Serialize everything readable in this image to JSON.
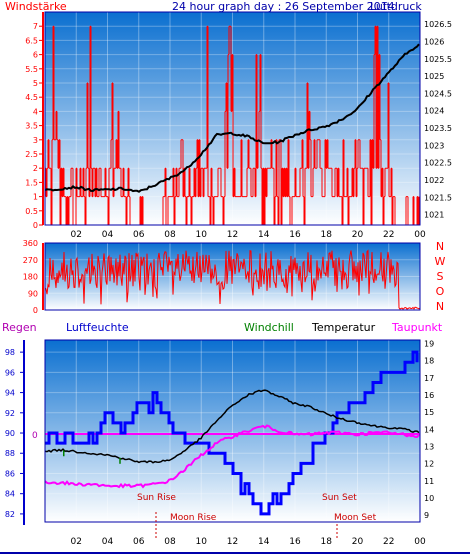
{
  "header": {
    "title": "24 hour graph day : 26 September 2014",
    "left_label": "Windstärke",
    "right_label": "Luftdruck"
  },
  "colors": {
    "wind": "#ff0000",
    "pressure": "#000000",
    "humidity": "#0000ff",
    "temperature": "#000000",
    "dewpoint": "#ff00ff",
    "windchill": "#008000",
    "bg_top": "#0a6fd0",
    "bg_bottom": "#ffffff",
    "frame": "#0000aa"
  },
  "legend": {
    "regen": "Regen",
    "luftfeuchte": "Luftfeuchte",
    "windchill": "Windchill",
    "temperatur": "Temperatur",
    "taupunkt": "Taupunkt"
  },
  "events": {
    "sun_rise": "Sun Rise",
    "sun_set": "Sun Set",
    "moon_rise": "Moon Rise",
    "moon_set": "Moon Set"
  },
  "chart_data": [
    {
      "type": "line",
      "title": "24 hour graph day : 26 September 2014",
      "x_ticks": [
        "02",
        "04",
        "06",
        "08",
        "10",
        "12",
        "14",
        "16",
        "18",
        "20",
        "22",
        "00"
      ],
      "left_axis": {
        "label": "Windstärke",
        "ticks": [
          "0",
          "0.5",
          "1",
          "1.5",
          "2",
          "2.5",
          "3",
          "3.5",
          "4",
          "4.5",
          "5",
          "5.5",
          "6",
          "6.5",
          "7"
        ],
        "ylim": [
          0,
          7.5
        ]
      },
      "right_axis": {
        "label": "Luftdruck",
        "ticks": [
          "1021",
          "1021.5",
          "1022",
          "1022.5",
          "1023",
          "1023.5",
          "1024",
          "1024.5",
          "1025",
          "1025.5",
          "1026",
          "1026.5"
        ],
        "ylim": [
          1020.7,
          1026.85
        ]
      },
      "series": [
        {
          "name": "Luftdruck",
          "axis": "right",
          "hours": [
            0,
            1,
            2,
            3,
            4,
            5,
            6,
            7,
            8,
            9,
            10,
            11,
            12,
            13,
            14,
            15,
            16,
            17,
            18,
            19,
            20,
            21,
            22,
            23,
            24
          ],
          "values": [
            1021.7,
            1021.75,
            1021.8,
            1021.7,
            1021.72,
            1021.75,
            1021.65,
            1021.85,
            1022.05,
            1022.3,
            1022.75,
            1023.3,
            1023.35,
            1023.25,
            1023.05,
            1023.1,
            1023.3,
            1023.45,
            1023.55,
            1023.75,
            1024.05,
            1024.6,
            1025.1,
            1025.6,
            1025.95
          ]
        },
        {
          "name": "Windstärke",
          "axis": "left",
          "note": "spiky bars, mostly 1–2 Bft with peaks up to 7"
        }
      ]
    },
    {
      "type": "line",
      "right_labels": [
        "N",
        "W",
        "S",
        "O",
        "N"
      ],
      "left_axis": {
        "ticks": [
          "0",
          "90",
          "180",
          "270",
          "360"
        ],
        "ylim": [
          0,
          360
        ]
      },
      "series": [
        {
          "name": "Windrichtung",
          "note": "dense noisy trace mostly between 90 and 330 degrees"
        }
      ]
    },
    {
      "type": "line",
      "x_ticks": [
        "02",
        "04",
        "06",
        "08",
        "10",
        "12",
        "14",
        "16",
        "18",
        "20",
        "22",
        "00"
      ],
      "left_axis": {
        "label": "Luftfeuchte",
        "ticks": [
          "82",
          "84",
          "86",
          "88",
          "90",
          "92",
          "94",
          "96",
          "98"
        ],
        "ylim": [
          81.2,
          99.2
        ]
      },
      "right_axis": {
        "label": "Temperatur",
        "ticks": [
          "9",
          "10",
          "11",
          "12",
          "13",
          "14",
          "15",
          "16",
          "17",
          "18",
          "19"
        ],
        "ylim": [
          8.6,
          19.2
        ]
      },
      "zero_marker": "0",
      "series": [
        {
          "name": "Luftfeuchte",
          "axis": "left",
          "step": true,
          "hours": [
            0,
            1,
            2,
            3,
            4,
            5,
            6,
            7,
            8,
            9,
            10,
            11,
            12,
            13,
            14,
            15,
            16,
            17,
            18,
            19,
            20,
            21,
            22,
            23,
            24
          ],
          "values": [
            89,
            90,
            89,
            89,
            92,
            90,
            93,
            93,
            91,
            89,
            89,
            88,
            86,
            84,
            82,
            84,
            86,
            88,
            90,
            92,
            93,
            95,
            96,
            97,
            98
          ]
        },
        {
          "name": "Temperatur",
          "axis": "right",
          "hours": [
            0,
            1,
            2,
            3,
            4,
            5,
            6,
            7,
            8,
            9,
            10,
            11,
            12,
            13,
            14,
            15,
            16,
            17,
            18,
            19,
            20,
            21,
            22,
            23,
            24
          ],
          "values": [
            12.7,
            12.8,
            12.7,
            12.6,
            12.5,
            12.3,
            12.1,
            12.1,
            12.2,
            12.8,
            13.5,
            14.5,
            15.4,
            16.0,
            16.3,
            15.9,
            15.5,
            15.3,
            14.9,
            14.6,
            14.4,
            14.2,
            14.1,
            14.0,
            13.8
          ]
        },
        {
          "name": "Taupunkt",
          "axis": "right",
          "hours": [
            0,
            1,
            2,
            3,
            4,
            5,
            6,
            7,
            8,
            9,
            10,
            11,
            12,
            13,
            14,
            15,
            16,
            17,
            18,
            19,
            20,
            21,
            22,
            23,
            24
          ],
          "values": [
            10.9,
            10.9,
            10.8,
            10.8,
            10.7,
            10.7,
            10.7,
            10.8,
            11.0,
            11.7,
            12.5,
            13.2,
            13.6,
            13.9,
            14.2,
            13.9,
            13.7,
            13.7,
            13.8,
            13.8,
            13.7,
            13.8,
            13.8,
            13.7,
            13.6
          ]
        },
        {
          "name": "Windchill",
          "axis": "right",
          "hours": [
            0,
            1,
            2,
            3,
            4,
            5,
            6,
            7,
            8,
            9,
            10,
            11,
            12,
            13,
            14,
            15,
            16,
            17,
            18,
            19,
            20,
            21,
            22,
            23,
            24
          ],
          "values": [
            12.7,
            12.8,
            12.7,
            12.6,
            12.5,
            12.3,
            12.1,
            12.1,
            12.2,
            12.8,
            13.5,
            14.5,
            15.4,
            16.0,
            16.3,
            15.9,
            15.5,
            15.3,
            14.9,
            14.6,
            14.4,
            14.2,
            14.1,
            14.0,
            13.8
          ]
        },
        {
          "name": "Regen",
          "value": 0
        }
      ]
    }
  ]
}
